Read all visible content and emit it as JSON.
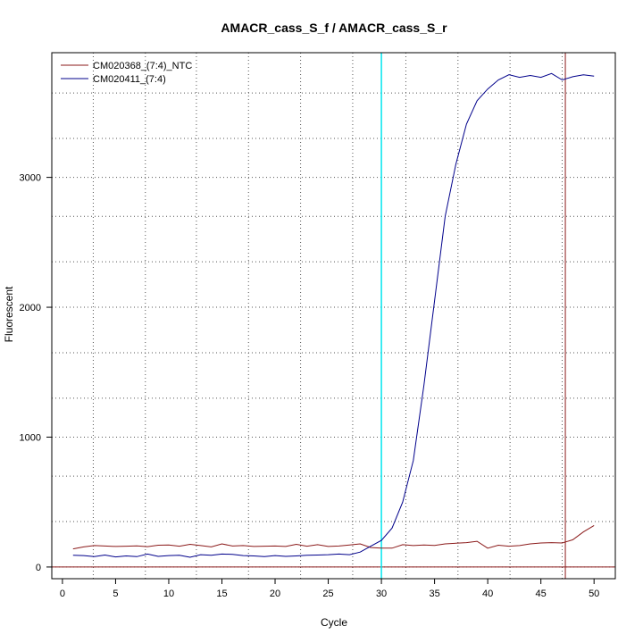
{
  "chart_data": {
    "type": "line",
    "title": "AMACR_cass_S_f / AMACR_cass_S_r",
    "xlabel": "Cycle",
    "ylabel": "Fluorescent",
    "xlim": [
      -1,
      52
    ],
    "ylim": [
      -90,
      3960
    ],
    "x_ticks": [
      0,
      5,
      10,
      15,
      20,
      25,
      30,
      35,
      40,
      45,
      50
    ],
    "y_ticks": [
      0,
      1000,
      2000,
      3000
    ],
    "legend_position": "top-left",
    "grid": "dotted",
    "vertical_grid_x": [
      2.9,
      7.8,
      12.6,
      17.5,
      22.4,
      27.3,
      32.3,
      37.2,
      42.1,
      47.0
    ],
    "horizontal_grid_y": [
      -300,
      0,
      350,
      700,
      1000,
      1300,
      1650,
      2000,
      2350,
      2700,
      3000,
      3300,
      3650
    ],
    "threshold_line": {
      "x": 30,
      "color": "#00e5ee"
    },
    "marker_line": {
      "x": 47.3,
      "color": "#8b1a1a"
    },
    "zero_line": {
      "y": 0,
      "color": "#8b1a1a"
    },
    "series": [
      {
        "name": "CM020368_(7:4)_NTC",
        "color": "#8b1a1a",
        "x": [
          1,
          2,
          3,
          4,
          5,
          6,
          7,
          8,
          9,
          10,
          11,
          12,
          13,
          14,
          15,
          16,
          17,
          18,
          19,
          20,
          21,
          22,
          23,
          24,
          25,
          26,
          27,
          28,
          29,
          30,
          31,
          32,
          33,
          34,
          35,
          36,
          37,
          38,
          39,
          40,
          41,
          42,
          43,
          44,
          45,
          46,
          47,
          48,
          49,
          50
        ],
        "values": [
          140,
          155,
          165,
          162,
          158,
          160,
          163,
          157,
          168,
          170,
          160,
          175,
          165,
          155,
          178,
          162,
          165,
          158,
          160,
          162,
          158,
          175,
          160,
          172,
          158,
          162,
          170,
          178,
          150,
          145,
          145,
          172,
          165,
          170,
          166,
          178,
          183,
          188,
          198,
          145,
          168,
          160,
          165,
          178,
          185,
          188,
          185,
          210,
          270,
          320
        ]
      },
      {
        "name": "CM020411_(7:4)",
        "color": "#00008b",
        "x": [
          1,
          2,
          3,
          4,
          5,
          6,
          7,
          8,
          9,
          10,
          11,
          12,
          13,
          14,
          15,
          16,
          17,
          18,
          19,
          20,
          21,
          22,
          23,
          24,
          25,
          26,
          27,
          28,
          29,
          30,
          31,
          32,
          33,
          34,
          35,
          36,
          37,
          38,
          39,
          40,
          41,
          42,
          43,
          44,
          45,
          46,
          47,
          48,
          49,
          50
        ],
        "values": [
          90,
          88,
          80,
          92,
          78,
          85,
          80,
          100,
          82,
          88,
          90,
          75,
          95,
          90,
          100,
          98,
          88,
          85,
          80,
          88,
          82,
          85,
          90,
          92,
          95,
          100,
          95,
          115,
          160,
          205,
          300,
          500,
          820,
          1400,
          2050,
          2700,
          3100,
          3410,
          3590,
          3680,
          3750,
          3790,
          3770,
          3785,
          3770,
          3800,
          3750,
          3775,
          3790,
          3780
        ]
      }
    ]
  }
}
